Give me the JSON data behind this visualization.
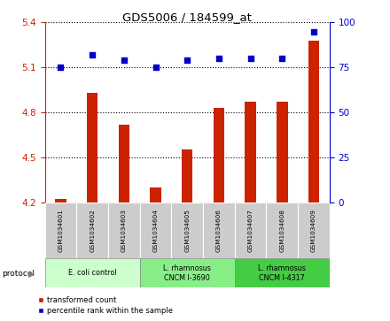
{
  "title": "GDS5006 / 184599_at",
  "samples": [
    "GSM1034601",
    "GSM1034602",
    "GSM1034603",
    "GSM1034604",
    "GSM1034605",
    "GSM1034606",
    "GSM1034607",
    "GSM1034608",
    "GSM1034609"
  ],
  "transformed_counts": [
    4.22,
    4.93,
    4.72,
    4.3,
    4.55,
    4.83,
    4.87,
    4.87,
    5.28
  ],
  "percentile_ranks": [
    75,
    82,
    79,
    75,
    79,
    80,
    80,
    80,
    95
  ],
  "ylim_left": [
    4.2,
    5.4
  ],
  "ylim_right": [
    0,
    100
  ],
  "yticks_left": [
    4.2,
    4.5,
    4.8,
    5.1,
    5.4
  ],
  "yticks_right": [
    0,
    25,
    50,
    75,
    100
  ],
  "protocols": [
    {
      "label": "E. coli control",
      "start": 0,
      "end": 3,
      "color": "#ccffcc"
    },
    {
      "label": "L. rhamnosus\nCNCM I-3690",
      "start": 3,
      "end": 6,
      "color": "#88ee88"
    },
    {
      "label": "L. rhamnosus\nCNCM I-4317",
      "start": 6,
      "end": 9,
      "color": "#44cc44"
    }
  ],
  "bar_color": "#cc2200",
  "dot_color": "#0000cc",
  "gridline_color": "#000000",
  "sample_bg_color": "#cccccc",
  "legend_red_label": "transformed count",
  "legend_blue_label": "percentile rank within the sample",
  "protocol_label": "protocol"
}
